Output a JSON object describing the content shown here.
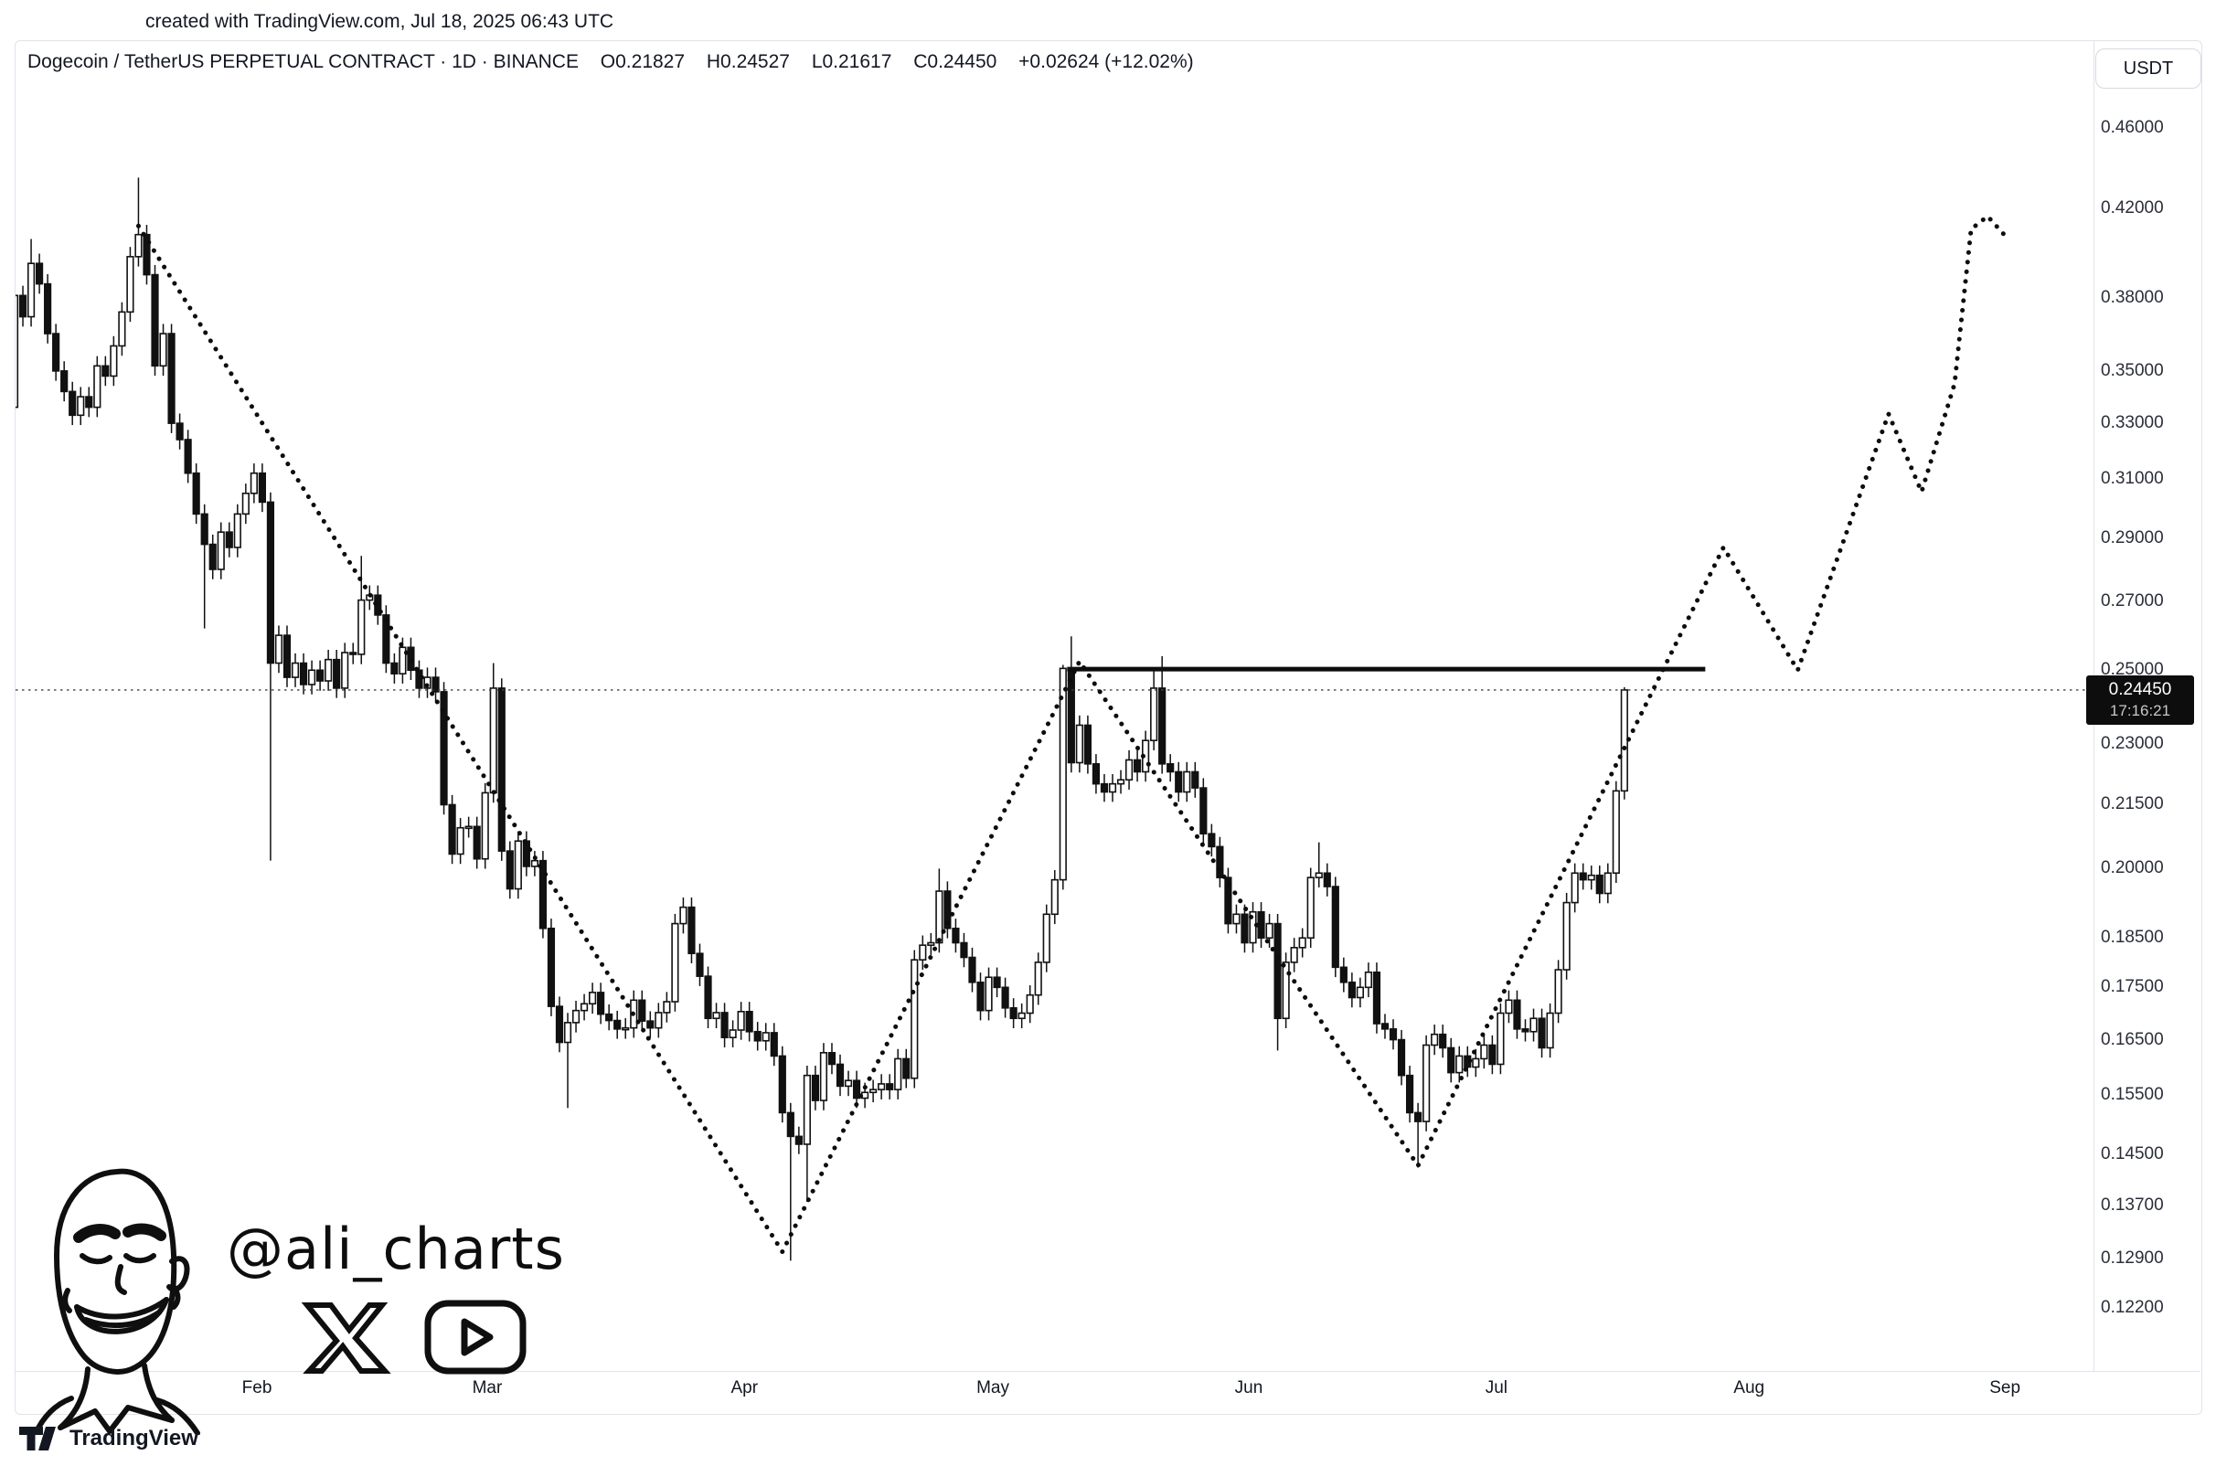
{
  "banner": {
    "text": "created with TradingView.com, Jul 18, 2025 06:43 UTC"
  },
  "header": {
    "symbol_title": "Dogecoin / TetherUS PERPETUAL CONTRACT · 1D · BINANCE",
    "ohlc": {
      "o": "O0.21827",
      "h": "H0.24527",
      "l": "L0.21617",
      "c": "C0.24450",
      "change": "+0.02624 (+12.02%)"
    }
  },
  "currency_button": {
    "label": "USDT"
  },
  "price_axis": {
    "labels": [
      "0.46000",
      "0.42000",
      "0.38000",
      "0.35000",
      "0.33000",
      "0.31000",
      "0.29000",
      "0.27000",
      "0.25000",
      "0.23000",
      "0.21500",
      "0.20000",
      "0.18500",
      "0.17500",
      "0.16500",
      "0.15500",
      "0.14500",
      "0.13700",
      "0.12900",
      "0.12200"
    ],
    "last_price_badge": {
      "price": "0.24450",
      "countdown": "17:16:21",
      "bg": "#0d0d0d",
      "fg": "#ffffff"
    }
  },
  "time_axis": {
    "months": [
      {
        "label": "Feb",
        "day_index": 29.35
      },
      {
        "label": "Mar",
        "day_index": 57.25
      },
      {
        "label": "Apr",
        "day_index": 88.4
      },
      {
        "label": "May",
        "day_index": 118.5
      },
      {
        "label": "Jun",
        "day_index": 149.5
      },
      {
        "label": "Jul",
        "day_index": 179.5
      },
      {
        "label": "Aug",
        "day_index": 210.1
      },
      {
        "label": "Sep",
        "day_index": 241.1
      }
    ]
  },
  "watermark": {
    "handle": "@ali_charts",
    "icons": [
      "x-logo",
      "youtube-logo"
    ],
    "portrait": "smiling-man-line-art"
  },
  "attribution": {
    "text": "TradingView",
    "logo": "tradingview-logo"
  },
  "colors": {
    "ink": "#0d0d0d",
    "candle_up_fill": "#ffffff",
    "candle_down_fill": "#111111",
    "candle_stroke": "#111111",
    "border": "#e0e3eb",
    "axis_text": "#2a2e39"
  },
  "chart_data": {
    "type": "candlestick",
    "title": "Dogecoin / TetherUS PERPETUAL CONTRACT",
    "exchange": "BINANCE",
    "timeframe": "1D",
    "scale": "log",
    "start_date": "2025-01-03",
    "ylim": [
      0.118,
      0.47
    ],
    "grid": false,
    "first_open": 0.336,
    "closes": [
      0.381,
      0.372,
      0.395,
      0.386,
      0.365,
      0.35,
      0.342,
      0.333,
      0.34,
      0.336,
      0.352,
      0.348,
      0.36,
      0.374,
      0.398,
      0.408,
      0.39,
      0.352,
      0.365,
      0.33,
      0.324,
      0.312,
      0.298,
      0.288,
      0.28,
      0.292,
      0.287,
      0.298,
      0.305,
      0.312,
      0.302,
      0.252,
      0.26,
      0.248,
      0.252,
      0.246,
      0.25,
      0.247,
      0.253,
      0.245,
      0.255,
      0.2545,
      0.2705,
      0.272,
      0.266,
      0.252,
      0.249,
      0.2565,
      0.25,
      0.245,
      0.248,
      0.244,
      0.2149,
      0.2033,
      0.2094,
      0.2097,
      0.2022,
      0.2178,
      0.245,
      0.204,
      0.1955,
      0.2063,
      0.2005,
      0.2018,
      0.187,
      0.1713,
      0.1645,
      0.1682,
      0.1705,
      0.1718,
      0.174,
      0.1698,
      0.1686,
      0.167,
      0.1672,
      0.1725,
      0.1685,
      0.1672,
      0.1701,
      0.1722,
      0.188,
      0.1915,
      0.1818,
      0.1772,
      0.169,
      0.1701,
      0.1654,
      0.1668,
      0.1703,
      0.1665,
      0.1648,
      0.1663,
      0.162,
      0.152,
      0.148,
      0.1467,
      0.1585,
      0.1541,
      0.1626,
      0.1605,
      0.1566,
      0.1576,
      0.1545,
      0.1555,
      0.156,
      0.157,
      0.156,
      0.1615,
      0.158,
      0.1805,
      0.1835,
      0.184,
      0.195,
      0.187,
      0.184,
      0.181,
      0.176,
      0.1705,
      0.177,
      0.175,
      0.171,
      0.169,
      0.17,
      0.1735,
      0.18,
      0.19,
      0.1975,
      0.2505,
      0.2253,
      0.235,
      0.225,
      0.22,
      0.218,
      0.22,
      0.221,
      0.226,
      0.223,
      0.231,
      0.245,
      0.225,
      0.223,
      0.218,
      0.223,
      0.219,
      0.208,
      0.205,
      0.198,
      0.188,
      0.19,
      0.184,
      0.1905,
      0.185,
      0.188,
      0.169,
      0.18,
      0.183,
      0.185,
      0.198,
      0.199,
      0.196,
      0.179,
      0.176,
      0.173,
      0.175,
      0.178,
      0.168,
      0.167,
      0.165,
      0.1585,
      0.152,
      0.1505,
      0.164,
      0.166,
      0.1635,
      0.159,
      0.162,
      0.16,
      0.1615,
      0.164,
      0.1605,
      0.17,
      0.1725,
      0.167,
      0.1665,
      0.169,
      0.1635,
      0.17,
      0.1785,
      0.1925,
      0.199,
      0.1975,
      0.1985,
      0.1945,
      0.199,
      0.21827,
      0.2445
    ],
    "wick_overrides": {
      "2": [
        0.406,
        null
      ],
      "15": [
        0.435,
        null
      ],
      "23": [
        null,
        0.262
      ],
      "31": [
        null,
        0.2018
      ],
      "42": [
        0.2843,
        null
      ],
      "58": [
        0.252,
        null
      ],
      "67": [
        null,
        0.1528
      ],
      "94": [
        null,
        0.1287
      ],
      "96": [
        null,
        0.1375
      ],
      "112": [
        0.2,
        null
      ],
      "127": [
        0.2515,
        null
      ],
      "128": [
        0.2597,
        null
      ],
      "138": [
        0.25,
        null
      ],
      "139": [
        0.254,
        null
      ],
      "153": [
        null,
        0.163
      ],
      "158": [
        0.206,
        null
      ],
      "170": [
        null,
        0.1429
      ],
      "195": [
        0.24527,
        0.21617
      ]
    },
    "last_candle": {
      "open": 0.21827,
      "high": 0.24527,
      "low": 0.21617,
      "close": 0.2445
    },
    "resistance_line": {
      "price": 0.2503,
      "from_day": 127.5,
      "to_day": 204.8,
      "style": "solid"
    },
    "current_price_line": {
      "price": 0.2445,
      "style": "dotted"
    },
    "projection_path": {
      "style": "dotted",
      "points": [
        [
          15,
          0.412
        ],
        [
          93,
          0.13
        ],
        [
          129,
          0.2525
        ],
        [
          170,
          0.1432
        ],
        [
          207,
          0.287
        ],
        [
          216,
          0.25
        ],
        [
          227,
          0.3335
        ],
        [
          231,
          0.3055
        ],
        [
          235,
          0.345
        ],
        [
          237,
          0.4105
        ],
        [
          239,
          0.4165
        ],
        [
          241,
          0.408
        ]
      ]
    }
  }
}
